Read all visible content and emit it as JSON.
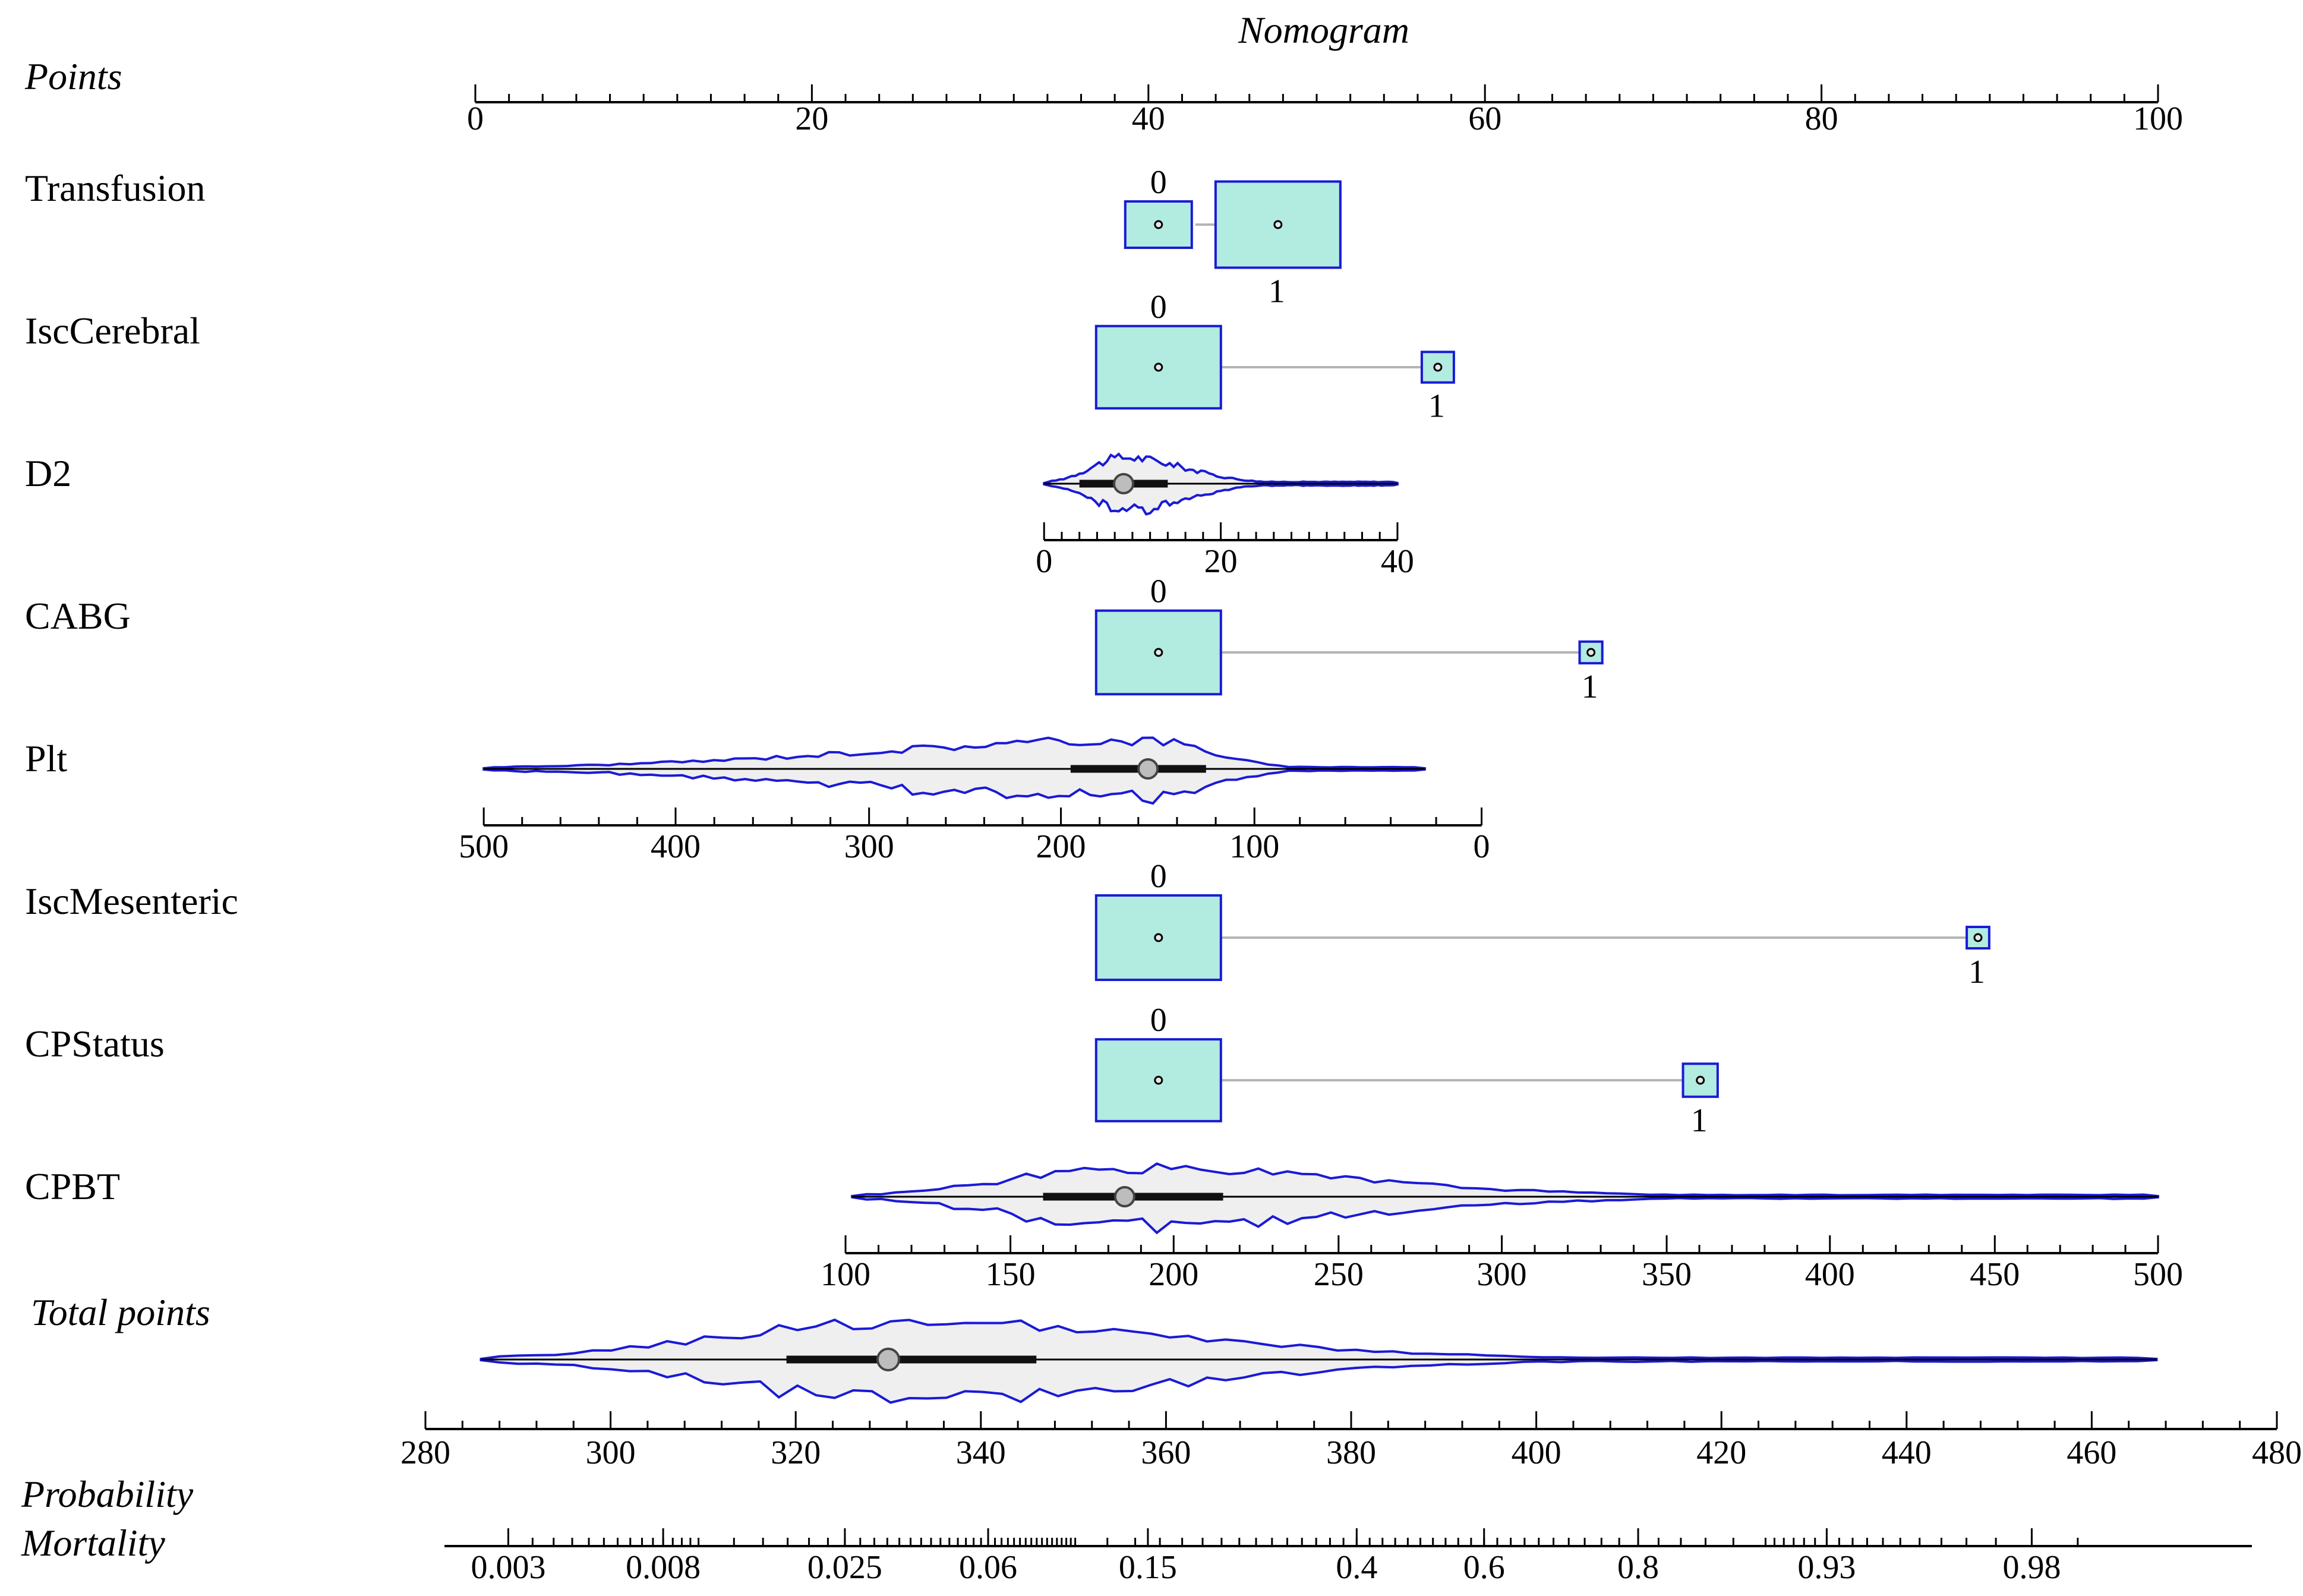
{
  "chart_data": {
    "type": "nomogram",
    "title": "Nomogram",
    "colors": {
      "outline": "#1a1ad6",
      "box_fill": "#b2ebe0",
      "violin_fill": "#efefef",
      "connector": "#b4b4b4",
      "marker": "#bdbdbd"
    },
    "points_axis": {
      "label": "Points",
      "min": 0,
      "max": 100,
      "major": [
        0,
        20,
        40,
        60,
        80,
        100
      ],
      "tick_labels": [
        "0",
        "20",
        "40",
        "60",
        "80",
        "100"
      ],
      "minor_step": 2
    },
    "variables": [
      {
        "name": "Transfusion",
        "kind": "categorical",
        "levels": [
          {
            "label": "0",
            "points": 40.6,
            "weight": 0.35,
            "label_pos": "above"
          },
          {
            "label": "1",
            "points": 47.7,
            "weight": 0.65,
            "label_pos": "below"
          }
        ]
      },
      {
        "name": "IscCerebral",
        "kind": "categorical",
        "levels": [
          {
            "label": "0",
            "points": 40.6,
            "weight": 0.94,
            "label_pos": "above"
          },
          {
            "label": "1",
            "points": 57.2,
            "weight": 0.06,
            "label_pos": "below"
          }
        ]
      },
      {
        "name": "D2",
        "kind": "continuous",
        "scale": {
          "values": [
            0,
            20,
            40
          ],
          "points": [
            33.8,
            44.3,
            54.8
          ],
          "tick_labels": [
            "0",
            "20",
            "40"
          ],
          "minor_step": 2
        },
        "summary": {
          "median": 9,
          "q1": 4,
          "q3": 14,
          "min": 0,
          "max": 41
        }
      },
      {
        "name": "CABG",
        "kind": "categorical",
        "levels": [
          {
            "label": "0",
            "points": 40.6,
            "weight": 0.97,
            "label_pos": "above"
          },
          {
            "label": "1",
            "points": 66.3,
            "weight": 0.03,
            "label_pos": "below"
          }
        ]
      },
      {
        "name": "Plt",
        "kind": "continuous",
        "scale": {
          "values": [
            500,
            400,
            300,
            200,
            100,
            0
          ],
          "points": [
            0.5,
            11.9,
            23.4,
            34.8,
            46.3,
            59.8
          ],
          "tick_labels": [
            "500",
            "400",
            "300",
            "200",
            "100",
            "0"
          ],
          "minor_step": 20
        },
        "summary": {
          "median": 155,
          "q1": 125,
          "q3": 195,
          "min": 25,
          "max": 520
        }
      },
      {
        "name": "IscMesenteric",
        "kind": "categorical",
        "levels": [
          {
            "label": "0",
            "points": 40.6,
            "weight": 0.99,
            "label_pos": "above"
          },
          {
            "label": "1",
            "points": 89.3,
            "weight": 0.01,
            "label_pos": "below"
          }
        ]
      },
      {
        "name": "CPStatus",
        "kind": "categorical",
        "levels": [
          {
            "label": "0",
            "points": 40.6,
            "weight": 0.93,
            "label_pos": "above"
          },
          {
            "label": "1",
            "points": 72.8,
            "weight": 0.07,
            "label_pos": "below"
          }
        ]
      },
      {
        "name": "CPBT",
        "kind": "continuous",
        "scale": {
          "values": [
            100,
            150,
            200,
            250,
            300,
            350,
            400,
            450,
            500
          ],
          "points": [
            22,
            31.8,
            41.5,
            51.3,
            61,
            70.8,
            80.5,
            90.3,
            100
          ],
          "tick_labels": [
            "100",
            "150",
            "200",
            "250",
            "300",
            "350",
            "400",
            "450",
            "500"
          ],
          "minor_step": 10
        },
        "summary": {
          "median": 185,
          "q1": 160,
          "q3": 215,
          "min": 102,
          "max": 500
        }
      }
    ],
    "total_points": {
      "label": "Total points",
      "min": 280,
      "max": 480,
      "major": [
        280,
        300,
        320,
        340,
        360,
        380,
        400,
        420,
        440,
        460,
        480
      ],
      "tick_labels": [
        "280",
        "300",
        "320",
        "340",
        "360",
        "380",
        "400",
        "420",
        "440",
        "460",
        "480"
      ],
      "minor_step": 4,
      "summary": {
        "median": 330,
        "q1": 319,
        "q3": 346,
        "min": 286,
        "max": 467
      }
    },
    "probability": {
      "label_line1": "Probability",
      "label_line2": "Mortality",
      "tick_labels": [
        "0.003",
        "0.008",
        "0.025",
        "0.06",
        "0.15",
        "0.4",
        "0.6",
        "0.8",
        "0.93",
        "0.98"
      ],
      "tick_values": [
        0.003,
        0.008,
        0.025,
        0.06,
        0.15,
        0.4,
        0.6,
        0.8,
        0.93,
        0.98
      ],
      "range": [
        0.002,
        0.995
      ],
      "calibration": {
        "intercept": -44.9,
        "slope": 0.11
      }
    }
  }
}
